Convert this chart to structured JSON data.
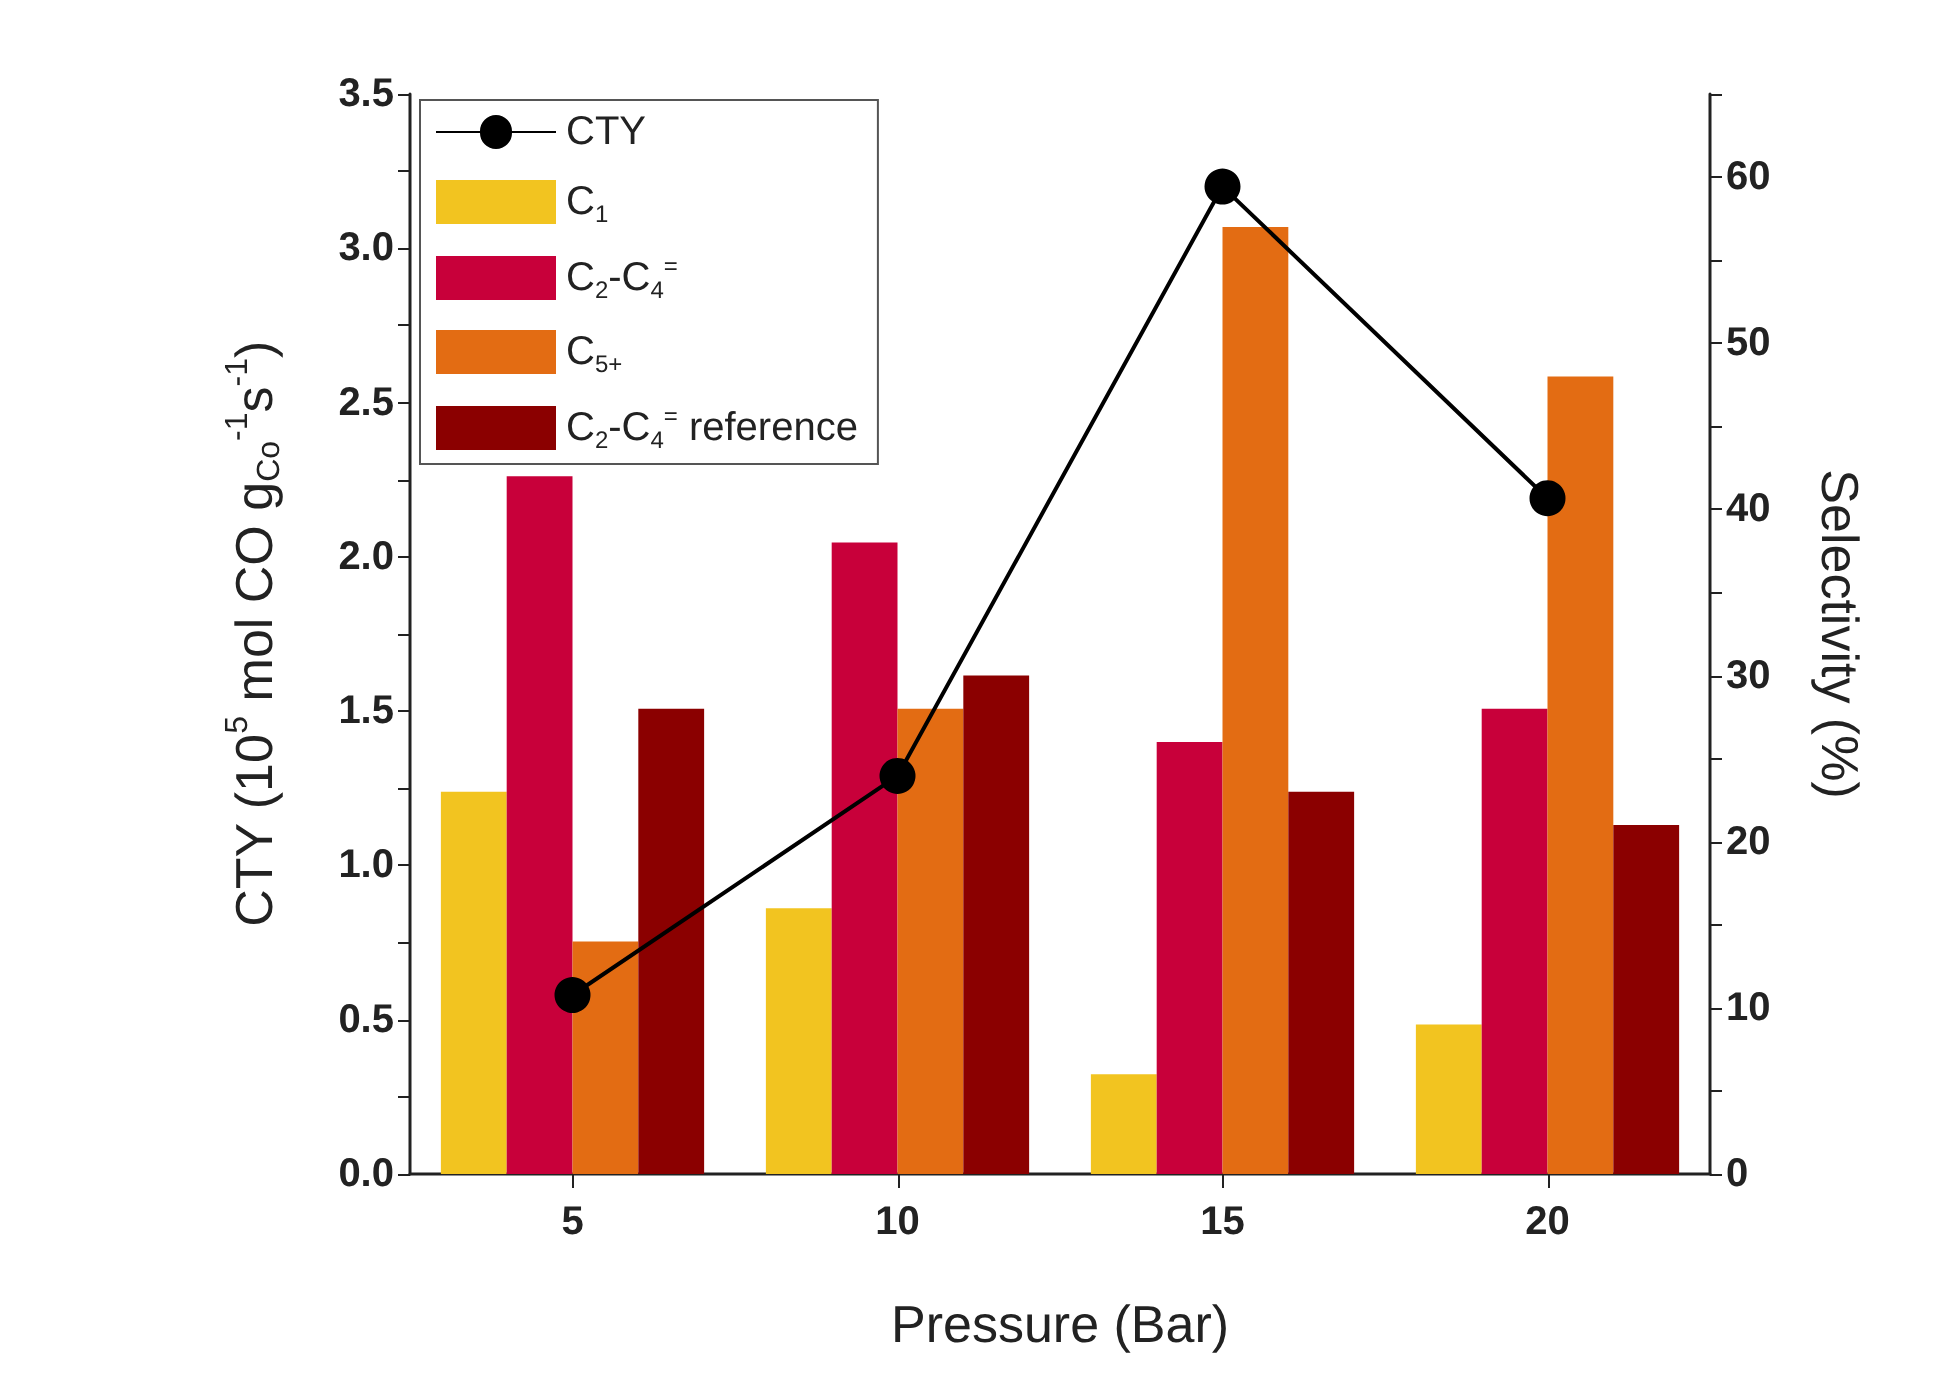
{
  "chart_data": {
    "type": "bar",
    "xlabel": "Pressure (Bar)",
    "ylabel": "CTY (10$^{5}$ mol CO g$_{Co}$$^{-1}$s$^{-1}$)",
    "y2label": "Selectivity (%)",
    "categories": [
      "5",
      "10",
      "15",
      "20"
    ],
    "series": [
      {
        "name": "CTY",
        "type": "line",
        "color": "#000000",
        "values": [
          0.58,
          1.29,
          3.2,
          2.19
        ]
      },
      {
        "name": "C$_{1}$",
        "color": "#f2c420",
        "axis": "y2",
        "values": [
          23,
          16,
          6,
          9
        ]
      },
      {
        "name": "C$_{2}$-C$_{4}$$^{=}$",
        "color": "#c8003a",
        "axis": "y2",
        "values": [
          42,
          38,
          26,
          28
        ]
      },
      {
        "name": "C$_{5+}$",
        "color": "#e36c13",
        "axis": "y2",
        "values": [
          14,
          28,
          57,
          48
        ]
      },
      {
        "name": "C$_{2}$-C$_{4}$$^{=}$ reference",
        "color": "#8b0000",
        "axis": "y2",
        "values": [
          28,
          30,
          23,
          21
        ]
      }
    ],
    "ylim": [
      0,
      3.5
    ],
    "yticks": [
      {
        "value": 0,
        "label": "0.0"
      },
      {
        "value": 0.25,
        "label": null
      },
      {
        "value": 0.5,
        "label": "0.5"
      },
      {
        "value": 0.75,
        "label": null
      },
      {
        "value": 1,
        "label": "1.0"
      },
      {
        "value": 1.25,
        "label": null
      },
      {
        "value": 1.5,
        "label": "1.5"
      },
      {
        "value": 1.75,
        "label": null
      },
      {
        "value": 2,
        "label": "2.0"
      },
      {
        "value": 2.25,
        "label": null
      },
      {
        "value": 2.5,
        "label": "2.5"
      },
      {
        "value": 2.75,
        "label": null
      },
      {
        "value": 3,
        "label": "3.0"
      },
      {
        "value": 3.25,
        "label": null
      },
      {
        "value": 3.5,
        "label": "3.5"
      }
    ],
    "y2lim": [
      0,
      65
    ],
    "y2ticks": [
      0,
      {
        "value": 5,
        "label": null
      },
      10,
      {
        "value": 15,
        "label": null
      },
      20,
      {
        "value": 25,
        "label": null
      },
      30,
      {
        "value": 35,
        "label": null
      },
      40,
      {
        "value": 45,
        "label": null
      },
      50,
      {
        "value": 55,
        "label": null
      },
      60,
      {
        "value": 65,
        "label": null
      }
    ],
    "marker": "circle",
    "line_style": "solid",
    "legend": "top left",
    "grid": false
  }
}
